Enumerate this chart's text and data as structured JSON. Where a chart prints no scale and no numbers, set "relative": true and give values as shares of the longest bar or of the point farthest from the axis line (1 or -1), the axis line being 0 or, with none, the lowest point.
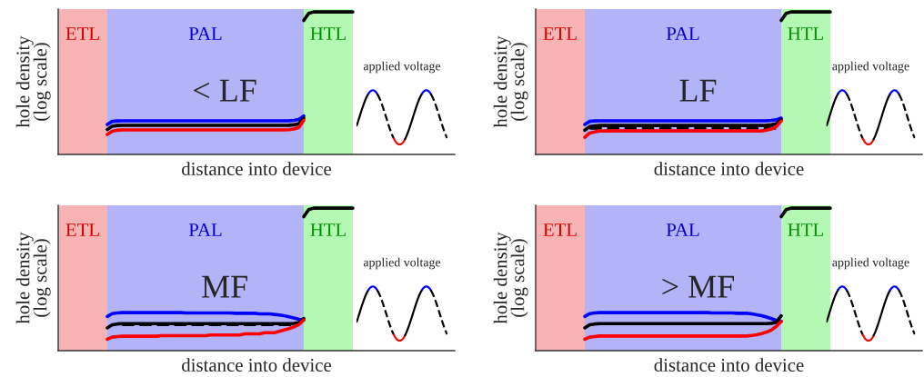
{
  "chart_data": [
    {
      "type": "line",
      "relative": true,
      "xlabel": "distance into device",
      "ylabel": "hole density\n(log scale)",
      "categories": [
        null,
        null,
        null,
        null,
        null,
        null,
        null,
        null,
        null,
        null,
        null,
        null,
        null,
        null,
        null,
        null,
        null,
        null,
        null,
        null,
        null,
        null,
        null,
        null,
        null,
        null,
        null,
        null,
        null,
        null,
        null,
        null,
        null,
        null,
        null,
        null,
        null,
        null,
        null,
        null,
        null,
        null,
        null,
        null,
        null,
        null,
        null,
        null,
        null,
        null,
        null
      ],
      "annotations": [
        "ETL",
        "PAL",
        "HTL",
        "< LF",
        "applied voltage"
      ],
      "series": [
        {
          "color": "#0000ff",
          "values": [
            0.21,
            0.232,
            0.235,
            0.236,
            0.236,
            0.236,
            0.236,
            0.236,
            0.236,
            0.236,
            0.236,
            0.236,
            0.236,
            0.236,
            0.236,
            0.236,
            0.236,
            0.236,
            0.236,
            0.236,
            0.236,
            0.236,
            0.236,
            0.236,
            0.236,
            0.236,
            0.236,
            0.236,
            0.236,
            0.236,
            0.236,
            0.236,
            0.236,
            0.236,
            0.236,
            0.236,
            0.236,
            0.237,
            0.239,
            0.245,
            0.27,
            null,
            null,
            null,
            null,
            null,
            null,
            null,
            null,
            null,
            null
          ]
        },
        {
          "color": "#000000",
          "values": [
            0.175,
            0.198,
            0.203,
            0.204,
            0.204,
            0.204,
            0.204,
            0.204,
            0.204,
            0.204,
            0.204,
            0.204,
            0.204,
            0.204,
            0.204,
            0.204,
            0.204,
            0.204,
            0.204,
            0.204,
            0.204,
            0.204,
            0.204,
            0.204,
            0.204,
            0.204,
            0.204,
            0.204,
            0.204,
            0.204,
            0.204,
            0.204,
            0.204,
            0.204,
            0.204,
            0.204,
            0.204,
            0.205,
            0.208,
            0.215,
            0.255,
            null,
            null,
            null,
            null,
            null,
            null,
            null,
            null,
            null,
            null
          ]
        },
        {
          "color": "#ff0000",
          "values": [
            0.14,
            0.163,
            0.17,
            0.172,
            0.172,
            0.172,
            0.172,
            0.172,
            0.172,
            0.172,
            0.172,
            0.172,
            0.172,
            0.172,
            0.172,
            0.172,
            0.172,
            0.172,
            0.172,
            0.172,
            0.172,
            0.172,
            0.172,
            0.172,
            0.172,
            0.172,
            0.172,
            0.172,
            0.172,
            0.172,
            0.172,
            0.172,
            0.172,
            0.172,
            0.172,
            0.172,
            0.172,
            0.174,
            0.178,
            0.19,
            0.24,
            null,
            null,
            null,
            null,
            null,
            null,
            null,
            null,
            null,
            null
          ]
        },
        {
          "color": "#000000",
          "values": [
            null,
            null,
            null,
            null,
            null,
            null,
            null,
            null,
            null,
            null,
            null,
            null,
            null,
            null,
            null,
            null,
            null,
            null,
            null,
            null,
            null,
            null,
            null,
            null,
            null,
            null,
            null,
            null,
            null,
            null,
            null,
            null,
            null,
            null,
            null,
            null,
            null,
            null,
            null,
            null,
            0.94,
            0.99,
            1,
            1,
            1,
            1,
            1,
            1,
            1,
            1,
            1
          ]
        }
      ]
    },
    {
      "type": "line",
      "relative": true,
      "xlabel": "distance into device",
      "ylabel": "hole density\n(log scale)",
      "categories": [
        null,
        null,
        null,
        null,
        null,
        null,
        null,
        null,
        null,
        null,
        null,
        null,
        null,
        null,
        null,
        null,
        null,
        null,
        null,
        null,
        null,
        null,
        null,
        null,
        null,
        null,
        null,
        null,
        null,
        null,
        null,
        null,
        null,
        null,
        null,
        null,
        null,
        null,
        null,
        null,
        null,
        null,
        null,
        null,
        null,
        null,
        null,
        null,
        null,
        null,
        null
      ],
      "annotations": [
        "ETL",
        "PAL",
        "HTL",
        "LF",
        "applied voltage"
      ],
      "series": [
        {
          "color": "#0000ff",
          "values": [
            0.21,
            0.232,
            0.235,
            0.236,
            0.236,
            0.236,
            0.236,
            0.236,
            0.236,
            0.236,
            0.236,
            0.236,
            0.236,
            0.236,
            0.236,
            0.236,
            0.236,
            0.236,
            0.236,
            0.236,
            0.236,
            0.236,
            0.236,
            0.236,
            0.236,
            0.236,
            0.236,
            0.236,
            0.236,
            0.236,
            0.236,
            0.236,
            0.236,
            0.236,
            0.236,
            0.236,
            0.236,
            0.237,
            0.239,
            0.243,
            0.255,
            null,
            null,
            null,
            null,
            null,
            null,
            null,
            null,
            null,
            null
          ]
        },
        {
          "color": "#000000",
          "values": [
            0.17,
            0.195,
            0.2,
            0.203,
            0.203,
            0.203,
            0.203,
            0.203,
            0.203,
            0.203,
            0.203,
            0.203,
            0.203,
            0.203,
            0.203,
            0.203,
            0.203,
            0.203,
            0.203,
            0.203,
            0.203,
            0.203,
            0.203,
            0.203,
            0.203,
            0.203,
            0.203,
            0.203,
            0.203,
            0.203,
            0.203,
            0.203,
            0.203,
            0.203,
            0.203,
            0.203,
            0.203,
            0.205,
            0.208,
            0.215,
            0.245,
            null,
            null,
            null,
            null,
            null,
            null,
            null,
            null,
            null,
            null
          ]
        },
        {
          "color": "#000000",
          "line_style": "dashed",
          "values": [
            null,
            0.185,
            0.185,
            0.185,
            0.185,
            0.185,
            0.185,
            0.185,
            0.185,
            0.185,
            0.185,
            0.185,
            0.185,
            0.185,
            0.185,
            0.185,
            0.185,
            0.185,
            0.185,
            0.185,
            0.185,
            0.185,
            0.185,
            0.185,
            0.185,
            0.185,
            0.185,
            0.185,
            0.185,
            0.185,
            0.185,
            0.185,
            0.185,
            0.185,
            0.185,
            0.185,
            0.185,
            0.185,
            0.185,
            0.185,
            null,
            null,
            null,
            null,
            null,
            null,
            null,
            null,
            null,
            null,
            null
          ]
        },
        {
          "color": "#ff0000",
          "values": [
            0.12,
            0.15,
            0.158,
            0.165,
            0.165,
            0.165,
            0.165,
            0.165,
            0.165,
            0.165,
            0.165,
            0.165,
            0.165,
            0.165,
            0.165,
            0.165,
            0.165,
            0.165,
            0.165,
            0.165,
            0.165,
            0.165,
            0.165,
            0.165,
            0.165,
            0.165,
            0.165,
            0.165,
            0.165,
            0.165,
            0.165,
            0.165,
            0.165,
            0.165,
            0.165,
            0.165,
            0.165,
            0.17,
            0.178,
            0.195,
            0.235,
            null,
            null,
            null,
            null,
            null,
            null,
            null,
            null,
            null,
            null
          ]
        },
        {
          "color": "#000000",
          "values": [
            null,
            null,
            null,
            null,
            null,
            null,
            null,
            null,
            null,
            null,
            null,
            null,
            null,
            null,
            null,
            null,
            null,
            null,
            null,
            null,
            null,
            null,
            null,
            null,
            null,
            null,
            null,
            null,
            null,
            null,
            null,
            null,
            null,
            null,
            null,
            null,
            null,
            null,
            null,
            null,
            0.94,
            0.99,
            1,
            1,
            1,
            1,
            1,
            1,
            1,
            1,
            1
          ]
        }
      ]
    },
    {
      "type": "line",
      "relative": true,
      "xlabel": "distance into device",
      "ylabel": "hole density\n(log scale)",
      "categories": [
        null,
        null,
        null,
        null,
        null,
        null,
        null,
        null,
        null,
        null,
        null,
        null,
        null,
        null,
        null,
        null,
        null,
        null,
        null,
        null,
        null,
        null,
        null,
        null,
        null,
        null,
        null,
        null,
        null,
        null,
        null,
        null,
        null,
        null,
        null,
        null,
        null,
        null,
        null,
        null,
        null,
        null,
        null,
        null,
        null,
        null,
        null,
        null,
        null,
        null,
        null
      ],
      "annotations": [
        "ETL",
        "PAL",
        "HTL",
        "MF",
        "applied voltage"
      ],
      "series": [
        {
          "color": "#0000ff",
          "values": [
            0.24,
            0.26,
            0.265,
            0.267,
            0.267,
            0.267,
            0.267,
            0.267,
            0.267,
            0.267,
            0.267,
            0.267,
            0.267,
            0.267,
            0.267,
            0.267,
            0.265,
            0.265,
            0.265,
            0.265,
            0.265,
            0.265,
            0.265,
            0.265,
            0.265,
            0.265,
            0.262,
            0.262,
            0.262,
            0.262,
            0.262,
            0.258,
            0.258,
            0.258,
            0.254,
            0.25,
            0.245,
            0.238,
            0.23,
            0.22,
            0.215,
            null,
            null,
            null,
            null,
            null,
            null,
            null,
            null,
            null,
            null
          ]
        },
        {
          "color": "#000000",
          "values": [
            0.16,
            0.182,
            0.187,
            0.19,
            0.19,
            0.19,
            0.19,
            0.19,
            0.19,
            0.19,
            0.19,
            0.19,
            0.19,
            0.19,
            0.19,
            0.19,
            0.19,
            0.19,
            0.19,
            0.19,
            0.19,
            0.19,
            0.19,
            0.19,
            0.19,
            0.19,
            0.19,
            0.19,
            0.19,
            0.19,
            0.19,
            0.19,
            0.19,
            0.19,
            0.19,
            0.19,
            0.19,
            0.19,
            0.191,
            0.197,
            0.225,
            null,
            null,
            null,
            null,
            null,
            null,
            null,
            null,
            null,
            null
          ]
        },
        {
          "color": "#000000",
          "line_style": "dashed",
          "values": [
            null,
            null,
            null,
            0.183,
            0.183,
            0.183,
            0.183,
            0.183,
            0.183,
            0.183,
            0.183,
            0.183,
            0.183,
            0.183,
            0.183,
            0.183,
            0.183,
            0.183,
            0.183,
            0.183,
            0.183,
            0.183,
            0.183,
            0.183,
            0.183,
            0.183,
            0.183,
            0.183,
            0.183,
            0.183,
            0.183,
            0.183,
            0.183,
            0.183,
            0.183,
            0.183,
            0.183,
            0.183,
            0.183,
            0.183,
            null,
            null,
            null,
            null,
            null,
            null,
            null,
            null,
            null,
            null,
            null
          ]
        },
        {
          "color": "#ff0000",
          "values": [
            0.08,
            0.095,
            0.099,
            0.101,
            0.101,
            0.101,
            0.101,
            0.101,
            0.101,
            0.101,
            0.101,
            0.105,
            0.105,
            0.105,
            0.105,
            0.105,
            0.105,
            0.105,
            0.105,
            0.105,
            0.105,
            0.11,
            0.11,
            0.11,
            0.11,
            0.11,
            0.11,
            0.11,
            0.118,
            0.118,
            0.118,
            0.118,
            0.126,
            0.126,
            0.126,
            0.135,
            0.145,
            0.155,
            0.167,
            0.183,
            0.215,
            null,
            null,
            null,
            null,
            null,
            null,
            null,
            null,
            null,
            null
          ]
        },
        {
          "color": "#000000",
          "values": [
            null,
            null,
            null,
            null,
            null,
            null,
            null,
            null,
            null,
            null,
            null,
            null,
            null,
            null,
            null,
            null,
            null,
            null,
            null,
            null,
            null,
            null,
            null,
            null,
            null,
            null,
            null,
            null,
            null,
            null,
            null,
            null,
            null,
            null,
            null,
            null,
            null,
            null,
            null,
            null,
            0.94,
            0.99,
            1,
            1,
            1,
            1,
            1,
            1,
            1,
            1,
            1
          ]
        }
      ]
    },
    {
      "type": "line",
      "relative": true,
      "xlabel": "distance into device",
      "ylabel": "hole density\n(log scale)",
      "categories": [
        null,
        null,
        null,
        null,
        null,
        null,
        null,
        null,
        null,
        null,
        null,
        null,
        null,
        null,
        null,
        null,
        null,
        null,
        null,
        null,
        null,
        null,
        null,
        null,
        null,
        null,
        null,
        null,
        null,
        null,
        null,
        null,
        null,
        null,
        null,
        null,
        null,
        null,
        null,
        null,
        null,
        null,
        null,
        null,
        null,
        null,
        null,
        null,
        null,
        null,
        null
      ],
      "annotations": [
        "ETL",
        "PAL",
        "HTL",
        "> MF",
        "applied voltage"
      ],
      "series": [
        {
          "color": "#0000ff",
          "values": [
            0.24,
            0.26,
            0.265,
            0.267,
            0.267,
            0.267,
            0.267,
            0.267,
            0.267,
            0.267,
            0.267,
            0.267,
            0.267,
            0.267,
            0.267,
            0.267,
            0.267,
            0.267,
            0.267,
            0.267,
            0.267,
            0.267,
            0.267,
            0.267,
            0.267,
            0.267,
            0.265,
            0.265,
            0.265,
            0.265,
            0.265,
            0.262,
            0.262,
            0.262,
            0.258,
            0.252,
            0.245,
            0.236,
            0.225,
            0.212,
            0.205,
            null,
            null,
            null,
            null,
            null,
            null,
            null,
            null,
            null,
            null
          ]
        },
        {
          "color": "#000000",
          "values": [
            0.16,
            0.182,
            0.187,
            0.19,
            0.19,
            0.19,
            0.19,
            0.19,
            0.19,
            0.19,
            0.19,
            0.19,
            0.19,
            0.19,
            0.19,
            0.19,
            0.19,
            0.19,
            0.19,
            0.19,
            0.19,
            0.19,
            0.19,
            0.19,
            0.19,
            0.19,
            0.19,
            0.19,
            0.19,
            0.19,
            0.19,
            0.19,
            0.19,
            0.19,
            0.19,
            0.19,
            0.19,
            0.19,
            0.192,
            0.2,
            0.245,
            null,
            null,
            null,
            null,
            null,
            null,
            null,
            null,
            null,
            null
          ]
        },
        {
          "color": "#ff0000",
          "values": [
            0.08,
            0.095,
            0.099,
            0.103,
            0.103,
            0.103,
            0.103,
            0.103,
            0.103,
            0.103,
            0.103,
            0.103,
            0.103,
            0.103,
            0.103,
            0.103,
            0.103,
            0.103,
            0.103,
            0.103,
            0.103,
            0.103,
            0.103,
            0.103,
            0.103,
            0.103,
            0.103,
            0.103,
            0.103,
            0.103,
            0.103,
            0.103,
            0.103,
            0.103,
            0.107,
            0.112,
            0.12,
            0.13,
            0.145,
            0.17,
            0.205,
            null,
            null,
            null,
            null,
            null,
            null,
            null,
            null,
            null,
            null
          ]
        },
        {
          "color": "#000000",
          "values": [
            null,
            null,
            null,
            null,
            null,
            null,
            null,
            null,
            null,
            null,
            null,
            null,
            null,
            null,
            null,
            null,
            null,
            null,
            null,
            null,
            null,
            null,
            null,
            null,
            null,
            null,
            null,
            null,
            null,
            null,
            null,
            null,
            null,
            null,
            null,
            null,
            null,
            null,
            null,
            null,
            0.94,
            0.99,
            1,
            1,
            1,
            1,
            1,
            1,
            1,
            1,
            1
          ]
        }
      ]
    }
  ]
}
